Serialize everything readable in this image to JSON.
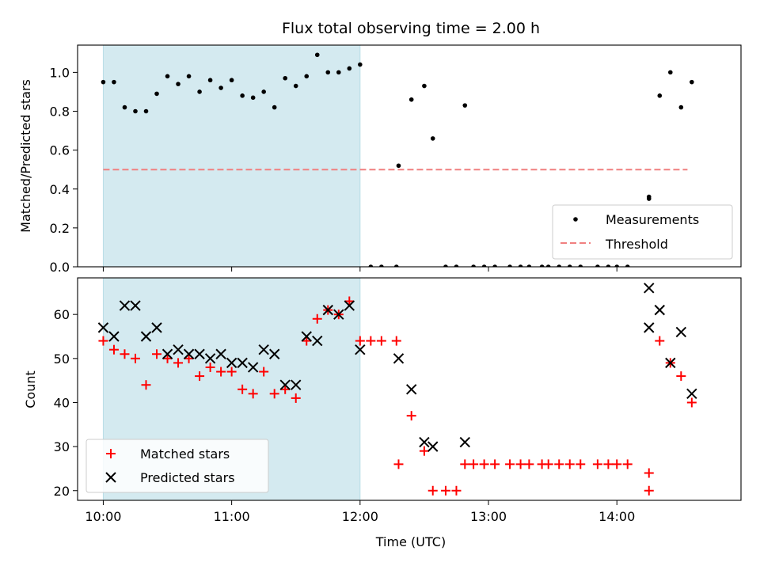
{
  "chart_data": [
    {
      "type": "scatter",
      "title": "Flux total observing time = 2.00 h",
      "ylabel": "Matched/Predicted stars",
      "ylim": [
        0,
        1.14
      ],
      "yticks": [
        "0.0",
        "0.2",
        "0.4",
        "0.6",
        "0.8",
        "1.0"
      ],
      "shaded_region": {
        "x_start": "10:00",
        "x_end": "12:00",
        "color": "#d4eaf0"
      },
      "threshold": {
        "name": "Threshold",
        "value": 0.5,
        "x_start": "10:00",
        "x_end": "14:33",
        "color": "#f08080",
        "style": "dashed"
      },
      "legend": [
        "Measurements",
        "Threshold"
      ],
      "legend_position": "lower-right",
      "series": [
        {
          "name": "Measurements",
          "marker": "dot",
          "color": "#000000",
          "points": [
            [
              "10:00",
              0.95
            ],
            [
              "10:05",
              0.95
            ],
            [
              "10:10",
              0.82
            ],
            [
              "10:15",
              0.8
            ],
            [
              "10:20",
              0.8
            ],
            [
              "10:25",
              0.89
            ],
            [
              "10:30",
              0.98
            ],
            [
              "10:35",
              0.94
            ],
            [
              "10:40",
              0.98
            ],
            [
              "10:45",
              0.9
            ],
            [
              "10:50",
              0.96
            ],
            [
              "10:55",
              0.92
            ],
            [
              "11:00",
              0.96
            ],
            [
              "11:05",
              0.88
            ],
            [
              "11:10",
              0.87
            ],
            [
              "11:15",
              0.9
            ],
            [
              "11:20",
              0.82
            ],
            [
              "11:25",
              0.97
            ],
            [
              "11:30",
              0.93
            ],
            [
              "11:35",
              0.98
            ],
            [
              "11:40",
              1.09
            ],
            [
              "11:45",
              1.0
            ],
            [
              "11:50",
              1.0
            ],
            [
              "11:55",
              1.02
            ],
            [
              "12:00",
              1.04
            ],
            [
              "12:05",
              0.0
            ],
            [
              "12:10",
              0.0
            ],
            [
              "12:17",
              0.0
            ],
            [
              "12:18",
              0.52
            ],
            [
              "12:24",
              0.86
            ],
            [
              "12:30",
              0.93
            ],
            [
              "12:34",
              0.66
            ],
            [
              "12:40",
              0.0
            ],
            [
              "12:45",
              0.0
            ],
            [
              "12:49",
              0.83
            ],
            [
              "12:53",
              0.0
            ],
            [
              "12:58",
              0.0
            ],
            [
              "13:03",
              0.0
            ],
            [
              "13:10",
              0.0
            ],
            [
              "13:15",
              0.0
            ],
            [
              "13:19",
              0.0
            ],
            [
              "13:25",
              0.0
            ],
            [
              "13:28",
              0.0
            ],
            [
              "13:33",
              0.0
            ],
            [
              "13:38",
              0.0
            ],
            [
              "13:43",
              0.0
            ],
            [
              "13:51",
              0.0
            ],
            [
              "13:56",
              0.0
            ],
            [
              "14:00",
              0.0
            ],
            [
              "14:05",
              0.0
            ],
            [
              "14:15",
              0.36
            ],
            [
              "14:15",
              0.35
            ],
            [
              "14:20",
              0.88
            ],
            [
              "14:25",
              1.0
            ],
            [
              "14:30",
              0.82
            ],
            [
              "14:35",
              0.95
            ]
          ]
        }
      ]
    },
    {
      "type": "scatter",
      "xlabel": "Time (UTC)",
      "ylabel": "Count",
      "xlim": [
        "09:48",
        "14:58"
      ],
      "ylim": [
        17.8,
        68.3
      ],
      "xticks": [
        "10:00",
        "11:00",
        "12:00",
        "13:00",
        "14:00"
      ],
      "yticks": [
        "20",
        "30",
        "40",
        "50",
        "60"
      ],
      "shaded_region": {
        "x_start": "10:00",
        "x_end": "12:00",
        "color": "#d4eaf0"
      },
      "legend": [
        "Matched stars",
        "Predicted stars"
      ],
      "legend_position": "lower-left",
      "series": [
        {
          "name": "Matched stars",
          "marker": "plus",
          "color": "#ff0000",
          "points": [
            [
              "10:00",
              54
            ],
            [
              "10:05",
              52
            ],
            [
              "10:10",
              51
            ],
            [
              "10:15",
              50
            ],
            [
              "10:20",
              44
            ],
            [
              "10:25",
              51
            ],
            [
              "10:30",
              50
            ],
            [
              "10:35",
              49
            ],
            [
              "10:40",
              50
            ],
            [
              "10:45",
              46
            ],
            [
              "10:50",
              48
            ],
            [
              "10:55",
              47
            ],
            [
              "11:00",
              47
            ],
            [
              "11:05",
              43
            ],
            [
              "11:10",
              42
            ],
            [
              "11:15",
              47
            ],
            [
              "11:20",
              42
            ],
            [
              "11:25",
              43
            ],
            [
              "11:30",
              41
            ],
            [
              "11:35",
              54
            ],
            [
              "11:40",
              59
            ],
            [
              "11:45",
              61
            ],
            [
              "11:50",
              60
            ],
            [
              "11:55",
              63
            ],
            [
              "12:00",
              54
            ],
            [
              "12:05",
              54
            ],
            [
              "12:10",
              54
            ],
            [
              "12:17",
              54
            ],
            [
              "12:18",
              26
            ],
            [
              "12:24",
              37
            ],
            [
              "12:30",
              29
            ],
            [
              "12:34",
              20
            ],
            [
              "12:40",
              20
            ],
            [
              "12:45",
              20
            ],
            [
              "12:49",
              26
            ],
            [
              "12:53",
              26
            ],
            [
              "12:58",
              26
            ],
            [
              "13:03",
              26
            ],
            [
              "13:10",
              26
            ],
            [
              "13:15",
              26
            ],
            [
              "13:19",
              26
            ],
            [
              "13:25",
              26
            ],
            [
              "13:28",
              26
            ],
            [
              "13:33",
              26
            ],
            [
              "13:38",
              26
            ],
            [
              "13:43",
              26
            ],
            [
              "13:51",
              26
            ],
            [
              "13:56",
              26
            ],
            [
              "14:00",
              26
            ],
            [
              "14:05",
              26
            ],
            [
              "14:15",
              24
            ],
            [
              "14:15",
              20
            ],
            [
              "14:20",
              54
            ],
            [
              "14:25",
              49
            ],
            [
              "14:30",
              46
            ],
            [
              "14:35",
              40
            ]
          ]
        },
        {
          "name": "Predicted stars",
          "marker": "x",
          "color": "#000000",
          "points": [
            [
              "10:00",
              57
            ],
            [
              "10:05",
              55
            ],
            [
              "10:10",
              62
            ],
            [
              "10:15",
              62
            ],
            [
              "10:20",
              55
            ],
            [
              "10:25",
              57
            ],
            [
              "10:30",
              51
            ],
            [
              "10:35",
              52
            ],
            [
              "10:40",
              51
            ],
            [
              "10:45",
              51
            ],
            [
              "10:50",
              50
            ],
            [
              "10:55",
              51
            ],
            [
              "11:00",
              49
            ],
            [
              "11:05",
              49
            ],
            [
              "11:10",
              48
            ],
            [
              "11:15",
              52
            ],
            [
              "11:20",
              51
            ],
            [
              "11:25",
              44
            ],
            [
              "11:30",
              44
            ],
            [
              "11:35",
              55
            ],
            [
              "11:40",
              54
            ],
            [
              "11:45",
              61
            ],
            [
              "11:50",
              60
            ],
            [
              "11:55",
              62
            ],
            [
              "12:00",
              52
            ],
            [
              "12:18",
              50
            ],
            [
              "12:24",
              43
            ],
            [
              "12:30",
              31
            ],
            [
              "12:34",
              30
            ],
            [
              "12:49",
              31
            ],
            [
              "14:15",
              66
            ],
            [
              "14:15",
              57
            ],
            [
              "14:20",
              61
            ],
            [
              "14:25",
              49
            ],
            [
              "14:30",
              56
            ],
            [
              "14:35",
              42
            ]
          ]
        }
      ]
    }
  ]
}
